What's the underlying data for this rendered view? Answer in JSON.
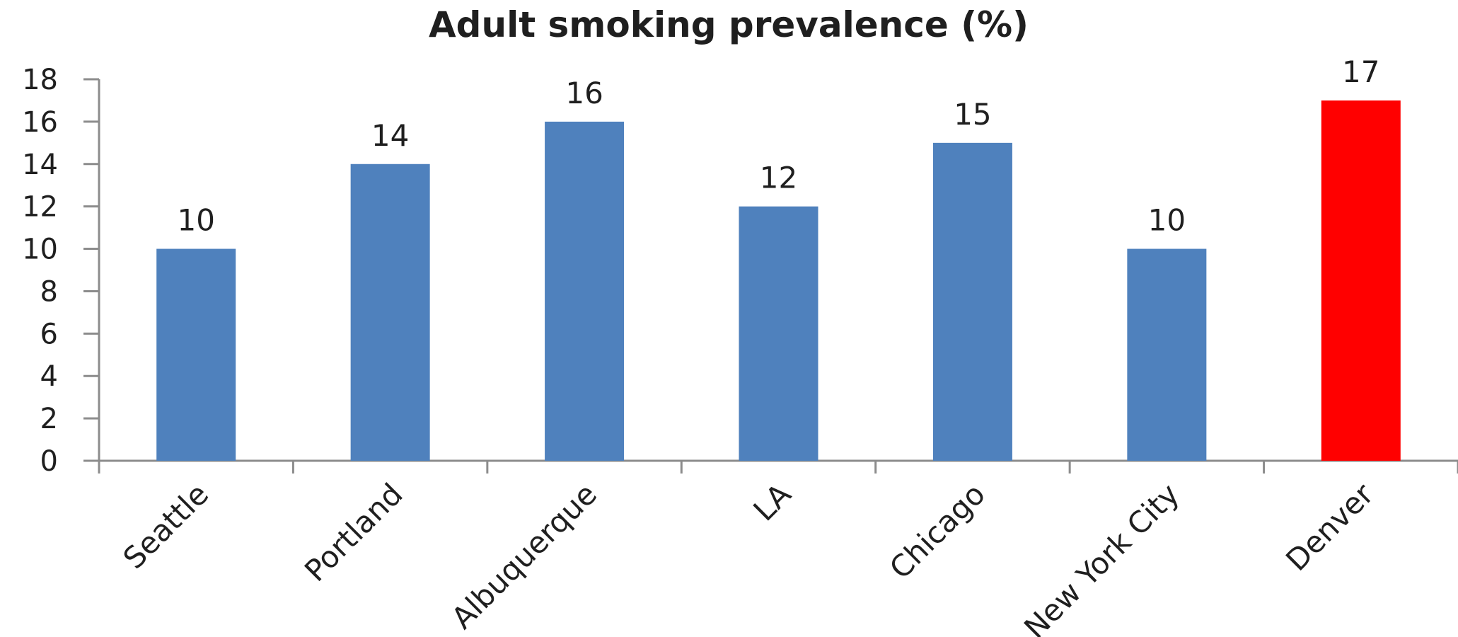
{
  "chart_data": {
    "type": "bar",
    "title": "Adult smoking prevalence (%)",
    "categories": [
      "Seattle",
      "Portland",
      "Albuquerque",
      "LA",
      "Chicago",
      "New York City",
      "Denver"
    ],
    "values": [
      10,
      14,
      16,
      12,
      15,
      10,
      17
    ],
    "data_labels": [
      "10",
      "14",
      "16",
      "12",
      "15",
      "10",
      "17"
    ],
    "ylim": [
      0,
      18
    ],
    "yticks": [
      "0",
      "2",
      "4",
      "6",
      "8",
      "10",
      "12",
      "14",
      "16",
      "18"
    ],
    "xlabel": "",
    "ylabel": "",
    "grid": false,
    "legend": "none",
    "colors": {
      "default_bar": "#4f81bd",
      "highlight_bar": "#ff0000",
      "axis": "#8c8c8c",
      "text": "#1f1f1f"
    },
    "highlight_category": "Denver"
  }
}
